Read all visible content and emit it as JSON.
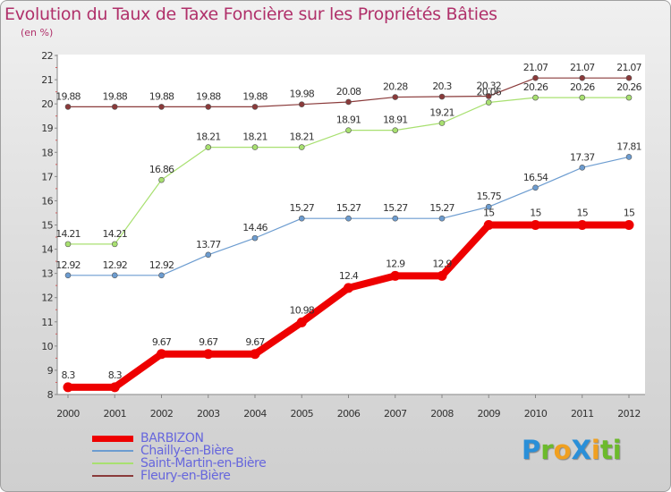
{
  "title": "Evolution du Taux de Taxe Foncière sur les Propriétés Bâties",
  "subtitle": "(en %)",
  "logo": {
    "text": "ProXiti",
    "letters": [
      {
        "ch": "P",
        "color": "#2a8fd8"
      },
      {
        "ch": "r",
        "color": "#6cba2c"
      },
      {
        "ch": "o",
        "color": "#f0a020"
      },
      {
        "ch": "X",
        "color": "#2a8fd8"
      },
      {
        "ch": "i",
        "color": "#f0a020"
      },
      {
        "ch": "t",
        "color": "#6cba2c"
      },
      {
        "ch": "i",
        "color": "#6cba2c"
      }
    ]
  },
  "chart_data": {
    "type": "line",
    "title": "Evolution du Taux de Taxe Foncière sur les Propriétés Bâties",
    "ylabel": "(en %)",
    "xlabel": "",
    "x": [
      "2000",
      "2001",
      "2002",
      "2003",
      "2004",
      "2005",
      "2006",
      "2007",
      "2008",
      "2009",
      "2010",
      "2011",
      "2012"
    ],
    "ylim": [
      8,
      22
    ],
    "yticks": [
      8,
      9,
      10,
      11,
      12,
      13,
      14,
      15,
      16,
      17,
      18,
      19,
      20,
      21,
      22
    ],
    "grid": false,
    "legend": "bottom-left",
    "series": [
      {
        "name": "BARBIZON",
        "color": "#ee0000",
        "width": 8,
        "values": [
          8.3,
          8.3,
          9.67,
          9.67,
          9.67,
          10.98,
          12.4,
          12.9,
          12.9,
          15,
          15,
          15,
          15
        ],
        "labels": [
          "8.3",
          "8.3",
          "9.67",
          "9.67",
          "9.67",
          "10.98",
          "12.4",
          "12.9",
          "12.9",
          "15",
          "15",
          "15",
          "15"
        ]
      },
      {
        "name": "Chailly-en-Bière",
        "color": "#6c9cd0",
        "width": 1.2,
        "values": [
          12.92,
          12.92,
          12.92,
          13.77,
          14.46,
          15.27,
          15.27,
          15.27,
          15.27,
          15.75,
          16.54,
          17.37,
          17.81
        ],
        "labels": [
          "12.92",
          "12.92",
          "12.92",
          "13.77",
          "14.46",
          "15.27",
          "15.27",
          "15.27",
          "15.27",
          "15.75",
          "16.54",
          "17.37",
          "17.81"
        ]
      },
      {
        "name": "Saint-Martin-en-Bière",
        "color": "#a8e070",
        "width": 1.2,
        "values": [
          14.21,
          14.21,
          16.86,
          18.21,
          18.21,
          18.21,
          18.91,
          18.91,
          19.21,
          20.06,
          20.26,
          20.26,
          20.26
        ],
        "labels": [
          "14.21",
          "14.21",
          "16.86",
          "18.21",
          "18.21",
          "18.21",
          "18.91",
          "18.91",
          "19.21",
          "20.06",
          "20.26",
          "20.26",
          "20.26"
        ]
      },
      {
        "name": "Fleury-en-Bière",
        "color": "#8a3a3a",
        "width": 1.2,
        "values": [
          19.88,
          19.88,
          19.88,
          19.88,
          19.88,
          19.98,
          20.08,
          20.28,
          20.3,
          20.32,
          21.07,
          21.07,
          21.07
        ],
        "labels": [
          "19.88",
          "19.88",
          "19.88",
          "19.88",
          "19.88",
          "19.98",
          "20.08",
          "20.28",
          "20.3",
          "20.32",
          "21.07",
          "21.07",
          "21.07"
        ]
      }
    ]
  }
}
